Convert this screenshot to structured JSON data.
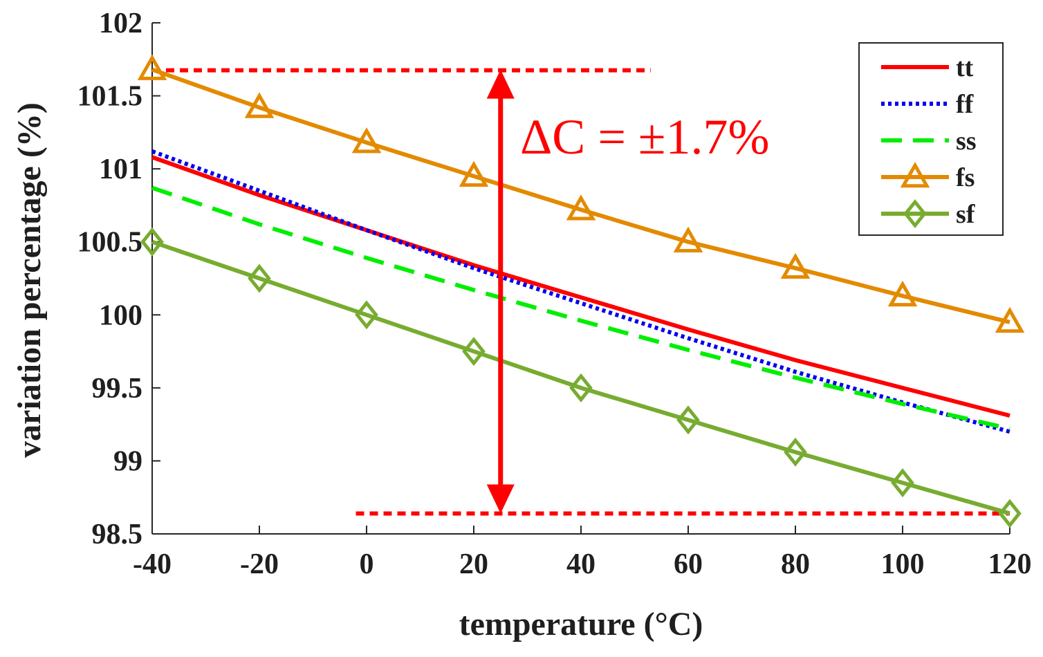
{
  "chart_data": {
    "type": "line",
    "xlabel": "temperature (°C)",
    "ylabel": "variation percentage (%)",
    "xlim": [
      -40,
      120
    ],
    "ylim": [
      98.5,
      102
    ],
    "x_ticks": [
      -40,
      -20,
      0,
      20,
      40,
      60,
      80,
      100,
      120
    ],
    "y_ticks": [
      98.5,
      99,
      99.5,
      100,
      100.5,
      101,
      101.5,
      102
    ],
    "x_tick_labels": [
      "-40",
      "-20",
      "0",
      "20",
      "40",
      "60",
      "80",
      "100",
      "120"
    ],
    "y_tick_labels": [
      "98.5",
      "99",
      "99.5",
      "100",
      "100.5",
      "101",
      "101.5",
      "102"
    ],
    "x": [
      -40,
      -20,
      0,
      20,
      40,
      60,
      80,
      100,
      120
    ],
    "legend_position": "top-right",
    "series": [
      {
        "name": "tt",
        "color": "#ff0000",
        "style": "solid",
        "marker": "none",
        "values": [
          101.08,
          100.82,
          100.58,
          100.34,
          100.12,
          99.9,
          99.69,
          99.5,
          99.31
        ]
      },
      {
        "name": "ff",
        "color": "#0000ee",
        "style": "dotted",
        "marker": "none",
        "values": [
          101.12,
          100.85,
          100.58,
          100.32,
          100.08,
          99.84,
          99.61,
          99.4,
          99.2
        ]
      },
      {
        "name": "ss",
        "color": "#00ee00",
        "style": "dashed",
        "marker": "none",
        "values": [
          100.87,
          100.62,
          100.39,
          100.17,
          99.96,
          99.76,
          99.57,
          99.39,
          99.22
        ]
      },
      {
        "name": "fs",
        "color": "#e38a00",
        "style": "solid",
        "marker": "triangle",
        "values": [
          101.68,
          101.42,
          101.18,
          100.95,
          100.72,
          100.5,
          100.32,
          100.13,
          99.95
        ]
      },
      {
        "name": "sf",
        "color": "#77ac30",
        "style": "solid",
        "marker": "diamond",
        "values": [
          100.5,
          100.25,
          100.0,
          99.75,
          99.5,
          99.28,
          99.06,
          98.85,
          98.64
        ]
      }
    ],
    "annotation": {
      "text": "ΔC = ±1.7%",
      "color": "#ff0000",
      "arrow_x": 25,
      "arrow_y_range": [
        98.64,
        101.68
      ],
      "upper_line": {
        "x_range": [
          -40,
          53
        ],
        "y": 101.68
      },
      "lower_line": {
        "x_range": [
          -2,
          120
        ],
        "y": 98.64
      }
    }
  }
}
